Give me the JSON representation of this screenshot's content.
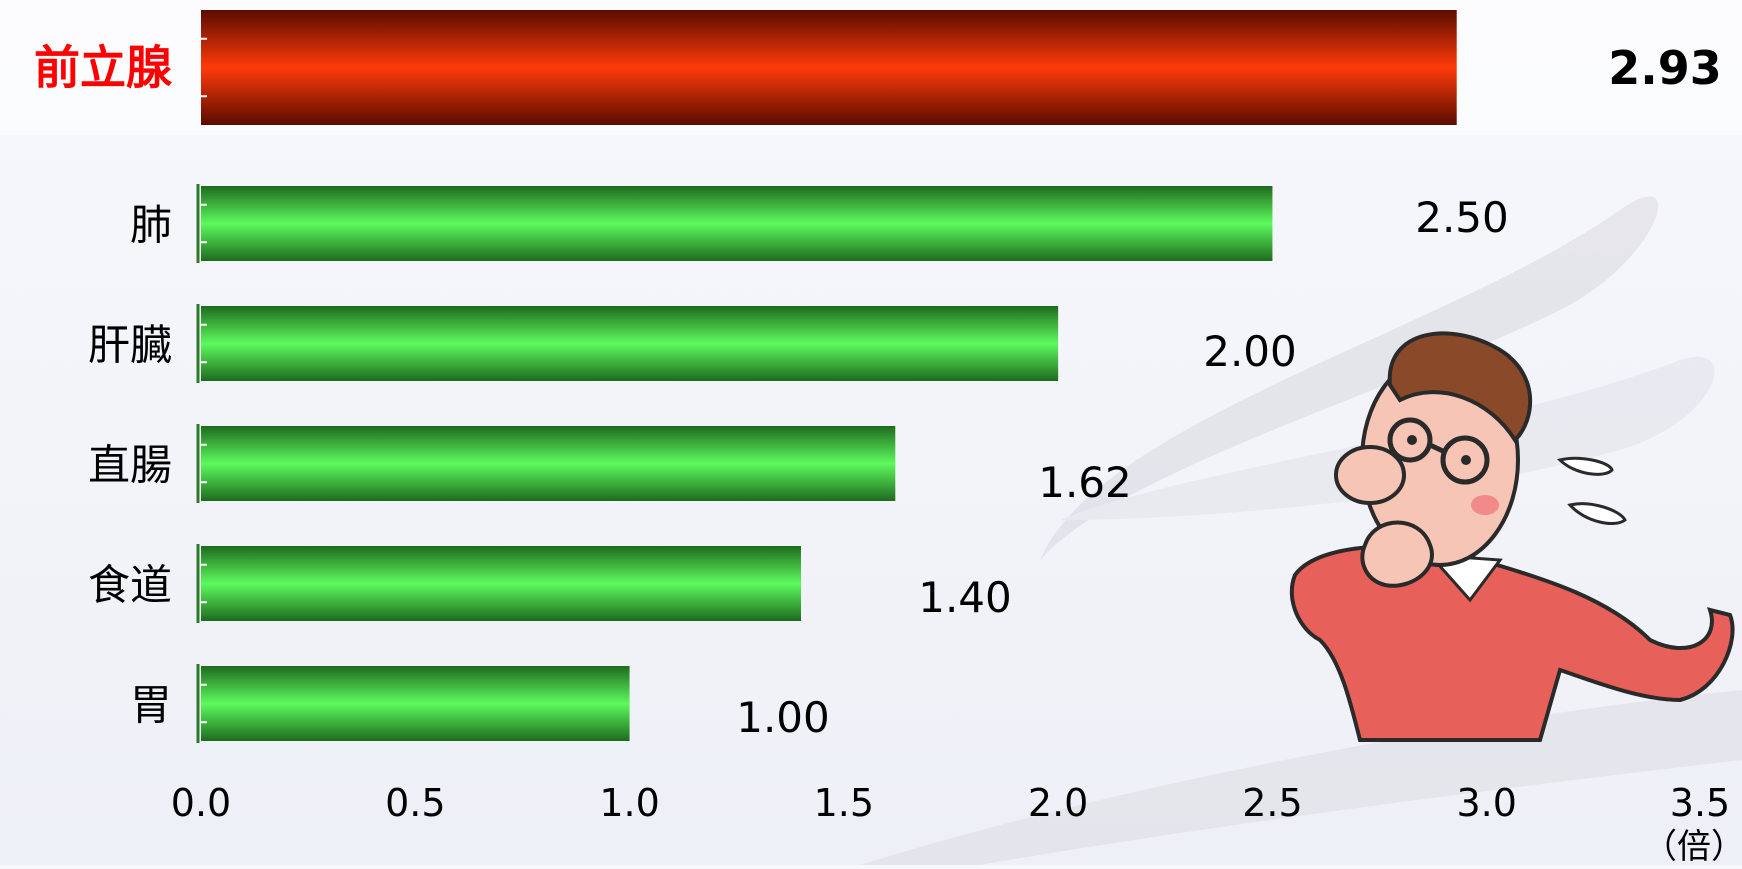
{
  "chart_data": {
    "type": "bar",
    "orientation": "horizontal",
    "categories": [
      "前立腺",
      "肺",
      "肝臓",
      "直腸",
      "食道",
      "胃"
    ],
    "values": [
      2.93,
      2.5,
      2.0,
      1.62,
      1.4,
      1.0
    ],
    "value_labels": [
      "2.93",
      "2.50",
      "2.00",
      "1.62",
      "1.40",
      "1.00"
    ],
    "highlight_index": 0,
    "xlim": [
      0,
      3.5
    ],
    "xticks": [
      0,
      0.5,
      1.0,
      1.5,
      2.0,
      2.5,
      3.0,
      3.5
    ],
    "xtick_labels": [
      "0.0",
      "0.5",
      "1.0",
      "1.5",
      "2.0",
      "2.5",
      "3.0",
      "3.5"
    ],
    "xunit": "（倍）",
    "grid": false,
    "colors": {
      "highlight_dark": "#5a0c00",
      "highlight_light": "#ff3a0a",
      "highlight_label": "#ff0000",
      "bar_dark": "#1e6a1e",
      "bar_light": "#5dfa5d",
      "text": "#000000"
    }
  },
  "decoration": {
    "illustration": "worried-man-illustration"
  }
}
